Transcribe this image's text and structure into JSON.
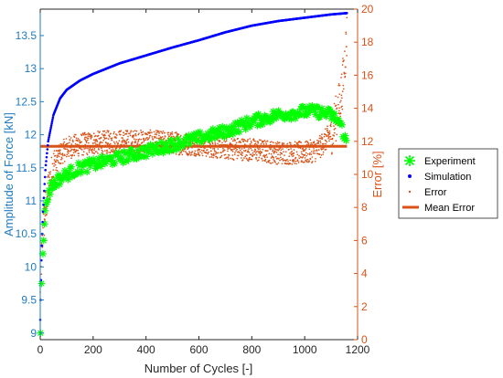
{
  "chart_data": {
    "type": "scatter",
    "xlabel": "Number of Cycles [-]",
    "ylabel_left": "Amplitude of Force [kN]",
    "ylabel_right": "Error [%]",
    "xlim": [
      0,
      1200
    ],
    "ylim_left": [
      8.9,
      13.9
    ],
    "ylim_right": [
      0,
      20
    ],
    "x_ticks": [
      "0",
      "200",
      "400",
      "600",
      "800",
      "1000",
      "1200"
    ],
    "y_left_ticks": [
      "9",
      "9.5",
      "10",
      "10.5",
      "11",
      "11.5",
      "12",
      "12.5",
      "13",
      "13.5"
    ],
    "y_right_ticks": [
      "0",
      "2",
      "4",
      "6",
      "8",
      "10",
      "12",
      "14",
      "16",
      "18",
      "20"
    ],
    "grid": false,
    "legend_position": "outside-right",
    "legend": [
      "Experiment",
      "Simulation",
      "Error",
      "Mean Error"
    ],
    "colors": {
      "experiment": "#00ff00",
      "simulation": "#0000ff",
      "error": "#d95319",
      "mean_error": "#d95319",
      "left_axis": "#1f7bbf",
      "right_axis": "#d95319"
    },
    "series": [
      {
        "name": "Experiment",
        "axis": "left",
        "x": [
          1,
          5,
          10,
          15,
          20,
          30,
          40,
          60,
          80,
          100,
          150,
          200,
          300,
          400,
          500,
          600,
          700,
          800,
          900,
          1000,
          1050,
          1100,
          1130,
          1150,
          1160
        ],
        "y": [
          9.0,
          9.75,
          10.2,
          10.6,
          10.9,
          11.1,
          11.2,
          11.3,
          11.35,
          11.4,
          11.5,
          11.55,
          11.65,
          11.75,
          11.85,
          11.95,
          12.05,
          12.2,
          12.3,
          12.35,
          12.35,
          12.3,
          12.2,
          12.0,
          11.8
        ]
      },
      {
        "name": "Simulation",
        "axis": "left",
        "x": [
          0,
          5,
          10,
          20,
          30,
          50,
          75,
          100,
          150,
          200,
          300,
          400,
          500,
          600,
          700,
          800,
          900,
          1000,
          1100,
          1160
        ],
        "y": [
          9.2,
          10.2,
          10.8,
          11.5,
          11.9,
          12.3,
          12.55,
          12.68,
          12.82,
          12.92,
          13.08,
          13.2,
          13.32,
          13.43,
          13.55,
          13.65,
          13.72,
          13.77,
          13.82,
          13.84
        ]
      },
      {
        "name": "Error",
        "axis": "right",
        "x": [
          0,
          5,
          10,
          20,
          30,
          50,
          75,
          100,
          150,
          200,
          300,
          400,
          500,
          600,
          700,
          800,
          900,
          1000,
          1050,
          1100,
          1120,
          1140,
          1150,
          1160
        ],
        "y": [
          2.5,
          5.0,
          6.5,
          8.0,
          9.0,
          10.5,
          11.2,
          11.6,
          11.8,
          11.9,
          12.0,
          12.0,
          11.9,
          11.8,
          11.6,
          11.5,
          11.3,
          11.3,
          11.5,
          12.5,
          13.5,
          15.0,
          16.5,
          18.5
        ]
      },
      {
        "name": "Mean Error",
        "axis": "right",
        "x": [
          0,
          1160
        ],
        "y": [
          11.7,
          11.7
        ]
      }
    ]
  }
}
